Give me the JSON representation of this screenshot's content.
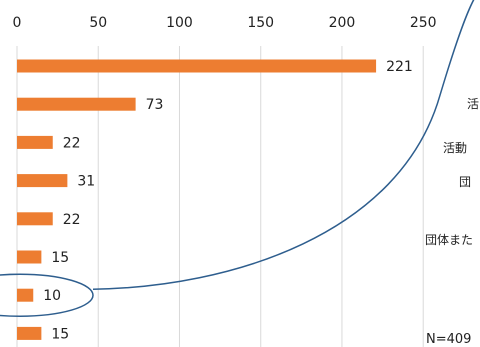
{
  "chart_data": {
    "type": "bar",
    "orientation": "horizontal",
    "title": "",
    "xlabel": "",
    "ylabel": "",
    "xlim": [
      0,
      250
    ],
    "x_ticks": [
      "0",
      "50",
      "100",
      "150",
      "200",
      "250"
    ],
    "values": [
      221,
      73,
      22,
      31,
      22,
      15,
      10,
      15
    ],
    "bar_color": "#ED7D31",
    "gridlines": true,
    "note": "N=409",
    "side_text": [
      "活",
      "活動",
      "団",
      "団体また"
    ],
    "highlight": {
      "shape": "ellipse",
      "color": "#2E5E8E",
      "bar_index": 6
    }
  }
}
